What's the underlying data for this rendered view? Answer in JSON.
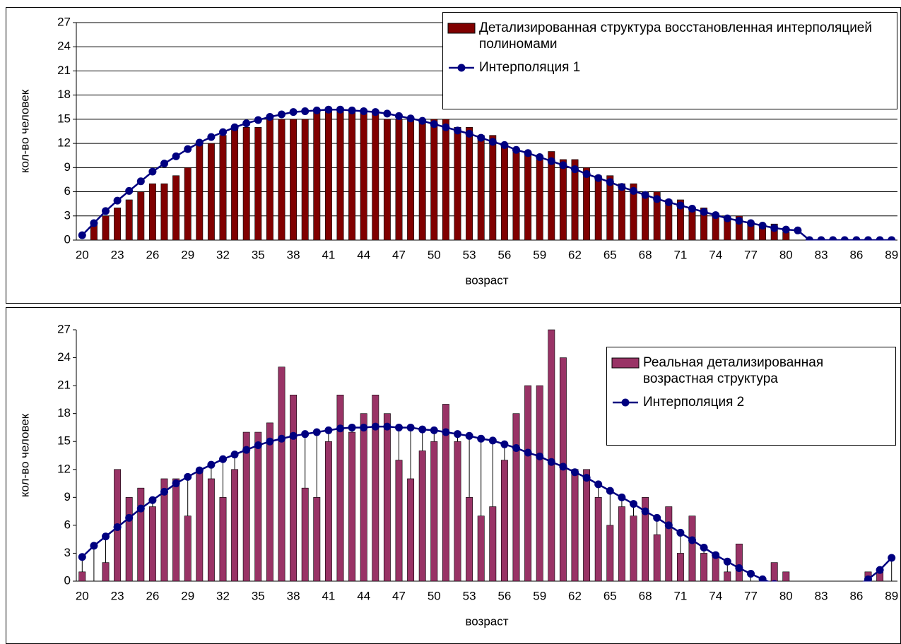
{
  "chart_data": [
    {
      "type": "bar",
      "y_label": "кол-во человек",
      "x_label": "возраст",
      "categories": [
        "20",
        null,
        null,
        "23",
        null,
        null,
        "26",
        null,
        null,
        "29",
        null,
        null,
        "32",
        null,
        null,
        "35",
        null,
        null,
        "38",
        null,
        null,
        "41",
        null,
        null,
        "44",
        null,
        null,
        "47",
        null,
        null,
        "50",
        null,
        null,
        "53",
        null,
        null,
        "56",
        null,
        null,
        "59",
        null,
        null,
        "62",
        null,
        null,
        "65",
        null,
        null,
        "68",
        null,
        null,
        "71",
        null,
        null,
        "74",
        null,
        null,
        "77",
        null,
        null,
        "80",
        null,
        null,
        "83",
        null,
        null,
        "86",
        null,
        null,
        "89"
      ],
      "series": [
        {
          "name": "Детализированная структура восстановленная интерполяцией полиномами",
          "type": "bar",
          "color": "#800000",
          "values": [
            0,
            2,
            3,
            4,
            5,
            6,
            7,
            7,
            8,
            9,
            12,
            12,
            13,
            14,
            14,
            14,
            15,
            15,
            15,
            15,
            16,
            16,
            16,
            16,
            16,
            16,
            15,
            15,
            15,
            15,
            15,
            15,
            14,
            14,
            13,
            13,
            12,
            11,
            11,
            10,
            11,
            10,
            10,
            9,
            8,
            8,
            7,
            7,
            6,
            6,
            5,
            5,
            4,
            4,
            3,
            3,
            3,
            2,
            2,
            2,
            1,
            0,
            0,
            0,
            0,
            0,
            0,
            0,
            0,
            0
          ]
        },
        {
          "name": "Интерполяция 1",
          "type": "line",
          "color": "#000080",
          "values": [
            0.6,
            2.1,
            3.6,
            4.9,
            6.1,
            7.3,
            8.5,
            9.5,
            10.4,
            11.3,
            12.1,
            12.8,
            13.4,
            14.0,
            14.5,
            14.9,
            15.3,
            15.6,
            15.9,
            16.0,
            16.1,
            16.2,
            16.2,
            16.1,
            16.0,
            15.9,
            15.7,
            15.4,
            15.1,
            14.8,
            14.4,
            14.0,
            13.6,
            13.2,
            12.7,
            12.2,
            11.8,
            11.2,
            10.8,
            10.3,
            9.8,
            9.3,
            8.8,
            8.2,
            7.7,
            7.2,
            6.6,
            6.1,
            5.6,
            5.1,
            4.7,
            4.3,
            3.9,
            3.5,
            3.1,
            2.7,
            2.4,
            2.1,
            1.8,
            1.5,
            1.3,
            1.2,
            0,
            0,
            0,
            0,
            0,
            0,
            0,
            0
          ]
        }
      ],
      "ylim": [
        0,
        27
      ],
      "yticks": [
        0,
        3,
        6,
        9,
        12,
        15,
        18,
        21,
        24,
        27
      ],
      "grid": true,
      "droplines": false,
      "legend": "top-right"
    },
    {
      "type": "bar",
      "y_label": "кол-во человек",
      "x_label": "возраст",
      "categories": [
        "20",
        null,
        null,
        "23",
        null,
        null,
        "26",
        null,
        null,
        "29",
        null,
        null,
        "32",
        null,
        null,
        "35",
        null,
        null,
        "38",
        null,
        null,
        "41",
        null,
        null,
        "44",
        null,
        null,
        "47",
        null,
        null,
        "50",
        null,
        null,
        "53",
        null,
        null,
        "56",
        null,
        null,
        "59",
        null,
        null,
        "62",
        null,
        null,
        "65",
        null,
        null,
        "68",
        null,
        null,
        "71",
        null,
        null,
        "74",
        null,
        null,
        "77",
        null,
        null,
        "80",
        null,
        null,
        "83",
        null,
        null,
        "86",
        null,
        null,
        "89"
      ],
      "series": [
        {
          "name": "Реальная детализированная возрастная структура",
          "type": "bar",
          "color": "#993366",
          "values": [
            1,
            0,
            2,
            12,
            9,
            10,
            8,
            11,
            11,
            7,
            12,
            11,
            9,
            12,
            16,
            16,
            17,
            23,
            20,
            10,
            9,
            15,
            20,
            16,
            18,
            20,
            18,
            13,
            11,
            14,
            15,
            19,
            15,
            9,
            7,
            8,
            13,
            18,
            21,
            21,
            27,
            24,
            12,
            12,
            9,
            6,
            8,
            7,
            9,
            5,
            8,
            3,
            7,
            3,
            3,
            1,
            4,
            0,
            0,
            2,
            1,
            0,
            0,
            0,
            0,
            0,
            0,
            1,
            1,
            0
          ]
        },
        {
          "name": "Интерполяция 2",
          "type": "line",
          "color": "#000080",
          "values": [
            2.6,
            3.8,
            4.8,
            5.8,
            6.8,
            7.8,
            8.7,
            9.6,
            10.5,
            11.2,
            11.9,
            12.5,
            13.1,
            13.6,
            14.1,
            14.6,
            15.0,
            15.3,
            15.6,
            15.8,
            16.0,
            16.2,
            16.4,
            16.5,
            16.5,
            16.6,
            16.6,
            16.5,
            16.5,
            16.3,
            16.2,
            16.0,
            15.8,
            15.6,
            15.3,
            15.1,
            14.7,
            14.3,
            13.8,
            13.4,
            12.8,
            12.3,
            11.7,
            11.1,
            10.4,
            9.7,
            9.0,
            8.3,
            7.5,
            6.8,
            6.0,
            5.2,
            4.4,
            3.6,
            2.8,
            2.1,
            1.4,
            0.8,
            0.2,
            -0.3,
            -0.8,
            -1.1,
            -1.3,
            -1.4,
            -1.3,
            -1.0,
            -0.5,
            0.2,
            1.2,
            2.5
          ]
        }
      ],
      "ylim": [
        0,
        27
      ],
      "yticks": [
        0,
        3,
        6,
        9,
        12,
        15,
        18,
        21,
        24,
        27
      ],
      "grid": false,
      "droplines": true,
      "legend": "top-right"
    }
  ]
}
